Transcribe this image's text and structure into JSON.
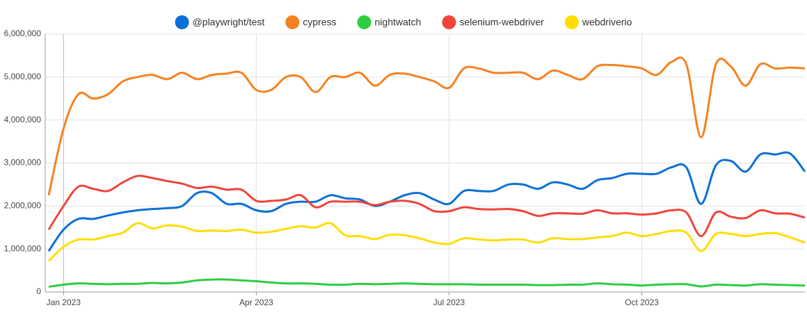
{
  "chart_data": {
    "type": "line",
    "categories": [
      null,
      "Jan 2023",
      null,
      null,
      null,
      null,
      null,
      null,
      null,
      null,
      null,
      null,
      null,
      null,
      "Apr 2023",
      null,
      null,
      null,
      null,
      null,
      null,
      null,
      null,
      null,
      null,
      null,
      null,
      "Jul 2023",
      null,
      null,
      null,
      null,
      null,
      null,
      null,
      null,
      null,
      null,
      null,
      null,
      "Oct 2023",
      null,
      null,
      null,
      null,
      null,
      null,
      null,
      null,
      null,
      null,
      null
    ],
    "series": [
      {
        "name": "@playwright/test",
        "color": "#0a6fd6",
        "values": [
          950000,
          1450000,
          1700000,
          1700000,
          1780000,
          1850000,
          1900000,
          1930000,
          1950000,
          2000000,
          2300000,
          2300000,
          2050000,
          2050000,
          1900000,
          1880000,
          2050000,
          2100000,
          2100000,
          2250000,
          2180000,
          2150000,
          2000000,
          2100000,
          2250000,
          2300000,
          2150000,
          2050000,
          2350000,
          2350000,
          2350000,
          2500000,
          2500000,
          2400000,
          2550000,
          2500000,
          2400000,
          2600000,
          2650000,
          2750000,
          2750000,
          2750000,
          2900000,
          2900000,
          2050000,
          2950000,
          3050000,
          2800000,
          3200000,
          3200000,
          3220000,
          2800000
        ]
      },
      {
        "name": "cypress",
        "color": "#f5821f",
        "values": [
          2250000,
          3800000,
          4600000,
          4500000,
          4600000,
          4900000,
          5000000,
          5050000,
          4950000,
          5100000,
          4950000,
          5050000,
          5080000,
          5100000,
          4700000,
          4700000,
          5000000,
          5000000,
          4650000,
          5000000,
          5000000,
          5100000,
          4800000,
          5050000,
          5080000,
          5000000,
          4900000,
          4750000,
          5200000,
          5200000,
          5100000,
          5100000,
          5100000,
          4950000,
          5150000,
          5050000,
          4950000,
          5250000,
          5280000,
          5250000,
          5200000,
          5050000,
          5350000,
          5300000,
          3600000,
          5300000,
          5250000,
          4800000,
          5300000,
          5200000,
          5220000,
          5200000
        ]
      },
      {
        "name": "nightwatch",
        "color": "#2ecc40",
        "values": [
          120000,
          170000,
          200000,
          190000,
          180000,
          190000,
          190000,
          210000,
          200000,
          220000,
          270000,
          290000,
          290000,
          270000,
          250000,
          220000,
          200000,
          200000,
          190000,
          170000,
          170000,
          190000,
          180000,
          190000,
          200000,
          190000,
          180000,
          180000,
          180000,
          170000,
          170000,
          170000,
          170000,
          160000,
          160000,
          170000,
          170000,
          200000,
          180000,
          170000,
          150000,
          170000,
          180000,
          180000,
          130000,
          170000,
          160000,
          150000,
          180000,
          170000,
          160000,
          150000
        ]
      },
      {
        "name": "selenium-webdriver",
        "color": "#f0443a",
        "values": [
          1450000,
          2000000,
          2450000,
          2400000,
          2350000,
          2550000,
          2700000,
          2650000,
          2580000,
          2520000,
          2420000,
          2450000,
          2380000,
          2380000,
          2120000,
          2120000,
          2150000,
          2250000,
          1970000,
          2100000,
          2100000,
          2100000,
          2020000,
          2100000,
          2120000,
          2050000,
          1880000,
          1880000,
          1970000,
          1930000,
          1920000,
          1930000,
          1880000,
          1770000,
          1830000,
          1830000,
          1820000,
          1900000,
          1830000,
          1830000,
          1800000,
          1830000,
          1900000,
          1850000,
          1300000,
          1850000,
          1750000,
          1720000,
          1900000,
          1830000,
          1820000,
          1730000
        ]
      },
      {
        "name": "webdriverio",
        "color": "#ffdd00",
        "values": [
          720000,
          1050000,
          1220000,
          1220000,
          1300000,
          1380000,
          1600000,
          1480000,
          1550000,
          1520000,
          1420000,
          1430000,
          1420000,
          1450000,
          1380000,
          1400000,
          1470000,
          1530000,
          1500000,
          1600000,
          1320000,
          1300000,
          1230000,
          1330000,
          1320000,
          1250000,
          1150000,
          1120000,
          1250000,
          1220000,
          1200000,
          1220000,
          1220000,
          1150000,
          1250000,
          1230000,
          1230000,
          1270000,
          1300000,
          1380000,
          1300000,
          1350000,
          1420000,
          1380000,
          950000,
          1350000,
          1350000,
          1300000,
          1350000,
          1370000,
          1270000,
          1150000
        ]
      }
    ],
    "ylim": [
      0,
      6000000
    ],
    "yticks": [
      0,
      {
        "value": 1000000,
        "label": "1,000,000"
      },
      {
        "value": 2000000,
        "label": "2,000,000"
      },
      {
        "value": 3000000,
        "label": "3,000,000"
      },
      {
        "value": 4000000,
        "label": "4,000,000"
      },
      {
        "value": 5000000,
        "label": "5,000,000"
      },
      {
        "value": 6000000,
        "label": "6,000,000"
      }
    ],
    "grid": true,
    "legend": "top"
  }
}
